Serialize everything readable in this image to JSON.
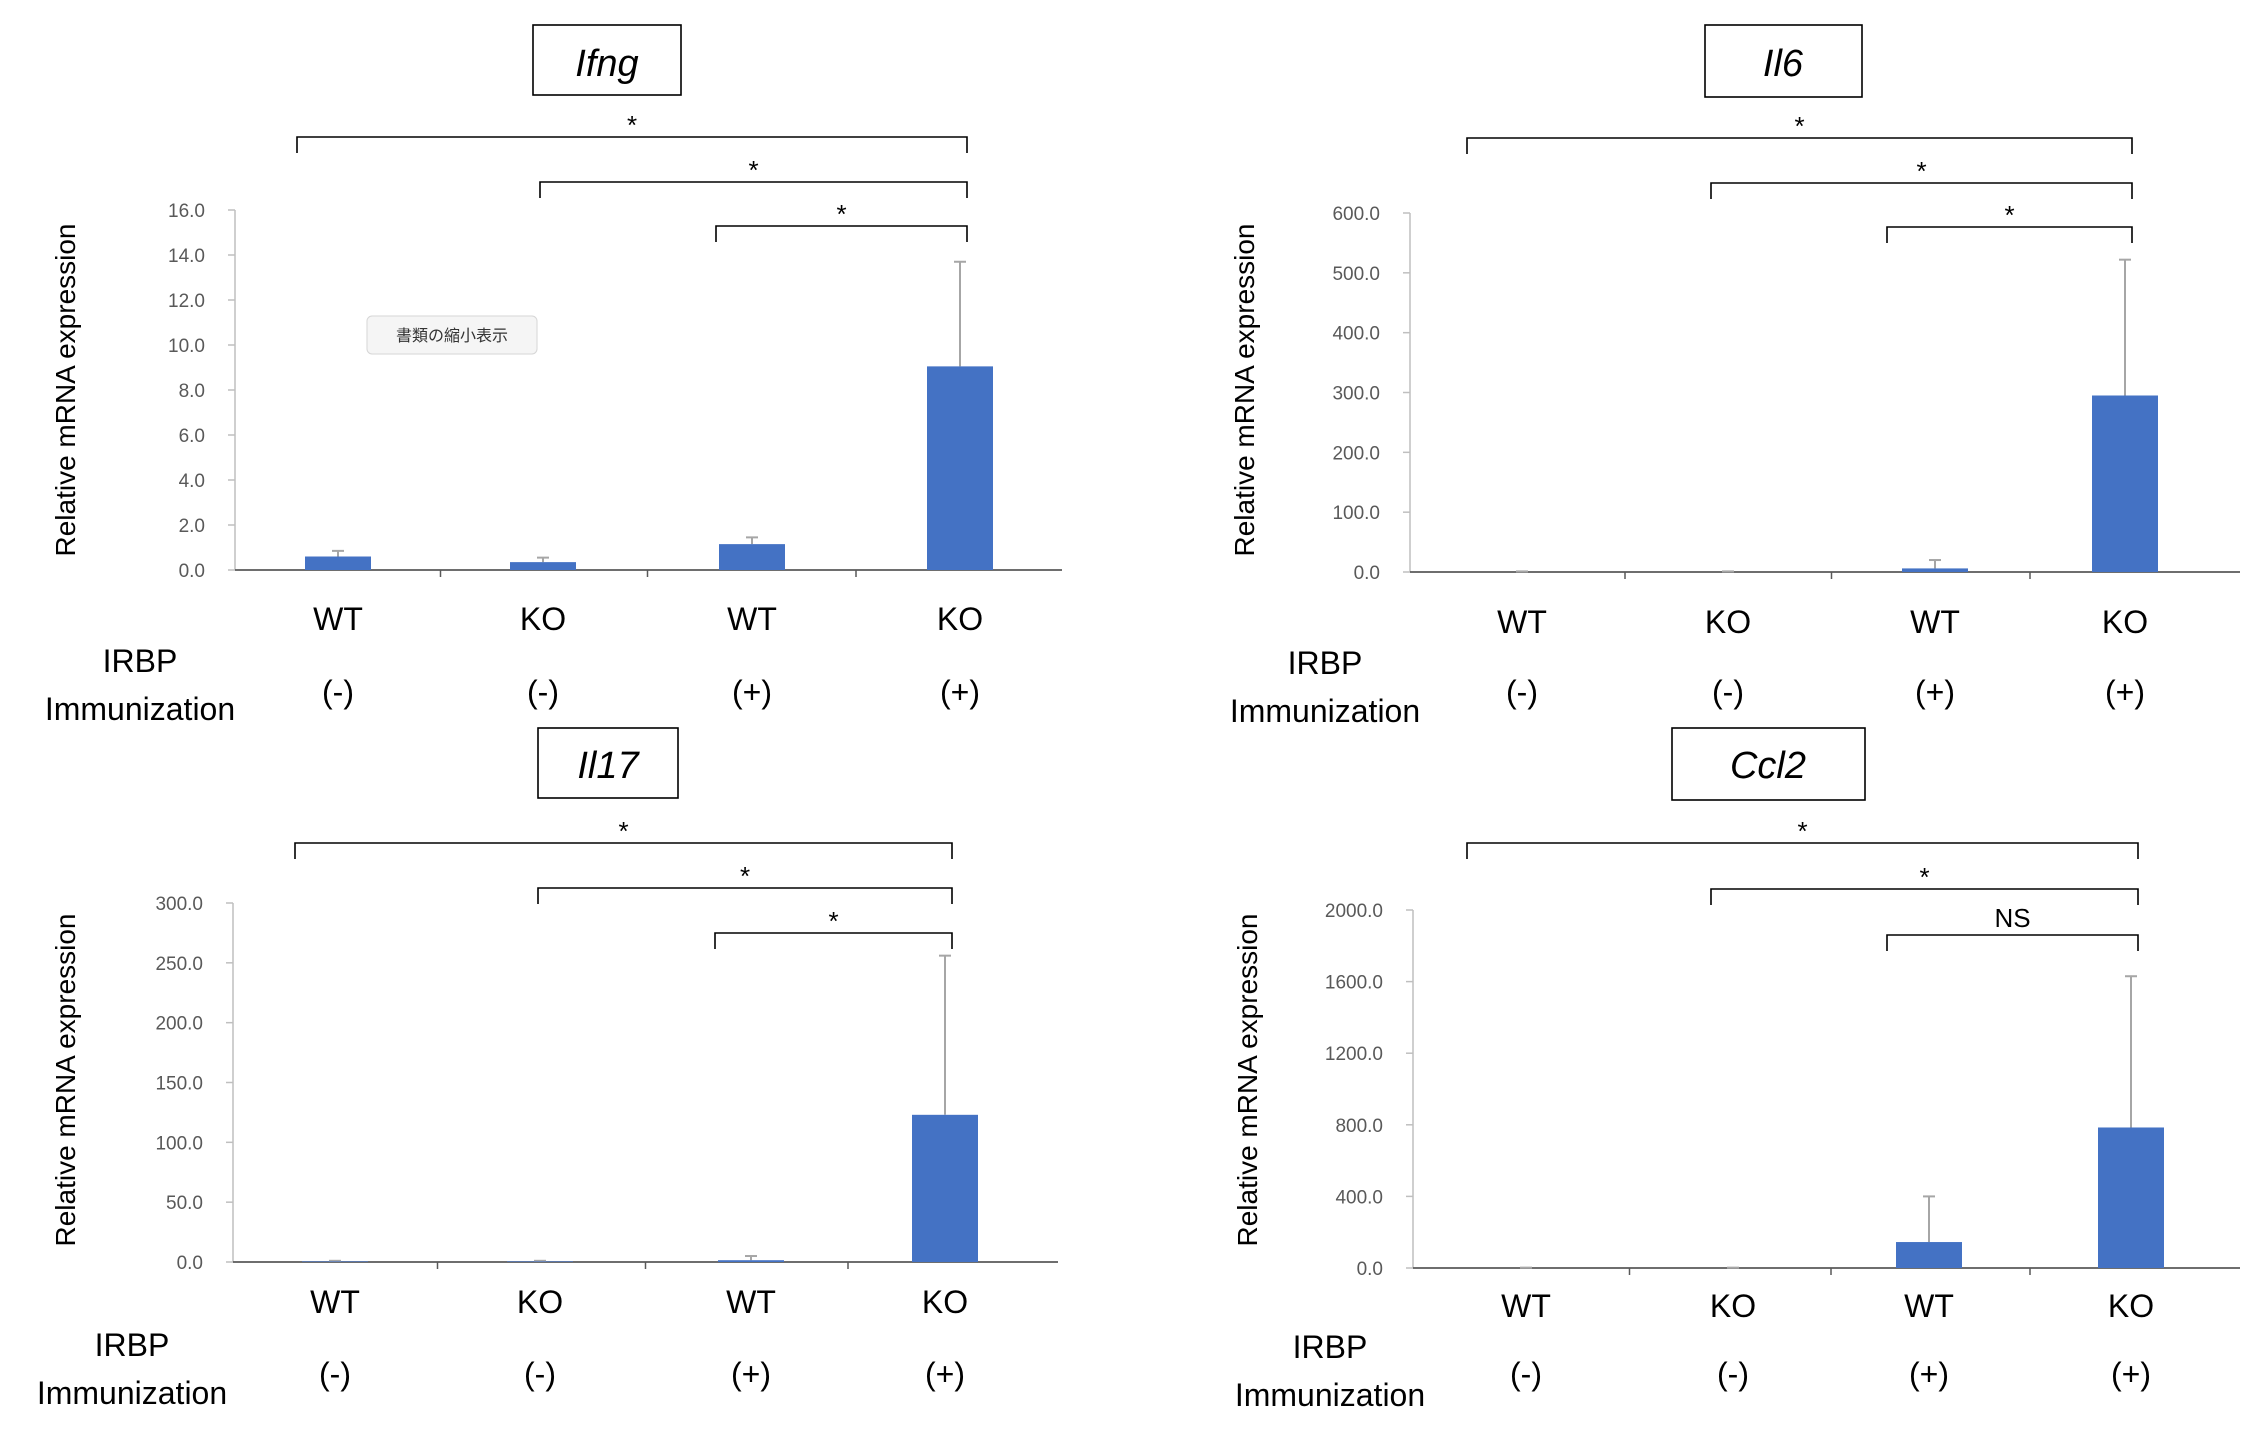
{
  "chart_data": [
    {
      "type": "bar",
      "title": "Ifng",
      "ylabel": "Relative mRNA expression",
      "ylim": [
        0,
        16
      ],
      "yticks": [
        "0.0",
        "2.0",
        "4.0",
        "6.0",
        "8.0",
        "10.0",
        "12.0",
        "14.0",
        "16.0"
      ],
      "categories": [
        "WT",
        "KO",
        "WT",
        "KO"
      ],
      "immunization": [
        "(-)",
        "(-)",
        "(+)",
        "(+)"
      ],
      "values": [
        0.6,
        0.35,
        1.15,
        9.05
      ],
      "errors": [
        0.25,
        0.2,
        0.3,
        4.65
      ],
      "comparisons": [
        {
          "from": 0,
          "to": 3,
          "label": "*"
        },
        {
          "from": 1,
          "to": 3,
          "label": "*"
        },
        {
          "from": 2,
          "to": 3,
          "label": "*"
        }
      ],
      "tooltip": "書類の縮小表示"
    },
    {
      "type": "bar",
      "title": "Il6",
      "ylabel": "Relative mRNA expression",
      "ylim": [
        0,
        600
      ],
      "yticks": [
        "0.0",
        "100.0",
        "200.0",
        "300.0",
        "400.0",
        "500.0",
        "600.0"
      ],
      "categories": [
        "WT",
        "KO",
        "WT",
        "KO"
      ],
      "immunization": [
        "(-)",
        "(-)",
        "(+)",
        "(+)"
      ],
      "values": [
        0.5,
        0.5,
        6,
        295
      ],
      "errors": [
        0.5,
        0.5,
        14,
        227
      ],
      "comparisons": [
        {
          "from": 0,
          "to": 3,
          "label": "*"
        },
        {
          "from": 1,
          "to": 3,
          "label": "*"
        },
        {
          "from": 2,
          "to": 3,
          "label": "*"
        }
      ]
    },
    {
      "type": "bar",
      "title": "Il17",
      "ylabel": "Relative mRNA expression",
      "ylim": [
        0,
        300
      ],
      "yticks": [
        "0.0",
        "50.0",
        "100.0",
        "150.0",
        "200.0",
        "250.0",
        "300.0"
      ],
      "categories": [
        "WT",
        "KO",
        "WT",
        "KO"
      ],
      "immunization": [
        "(-)",
        "(-)",
        "(+)",
        "(+)"
      ],
      "values": [
        0.5,
        0.5,
        1.5,
        123
      ],
      "errors": [
        0.5,
        0.5,
        3.5,
        133
      ],
      "comparisons": [
        {
          "from": 0,
          "to": 3,
          "label": "*"
        },
        {
          "from": 1,
          "to": 3,
          "label": "*"
        },
        {
          "from": 2,
          "to": 3,
          "label": "*"
        }
      ]
    },
    {
      "type": "bar",
      "title": "Ccl2",
      "ylabel": "Relative mRNA expression",
      "ylim": [
        0,
        2000
      ],
      "yticks": [
        "0.0",
        "400.0",
        "800.0",
        "1200.0",
        "1600.0",
        "2000.0"
      ],
      "categories": [
        "WT",
        "KO",
        "WT",
        "KO"
      ],
      "immunization": [
        "(-)",
        "(-)",
        "(+)",
        "(+)"
      ],
      "values": [
        1,
        1,
        145,
        785
      ],
      "errors": [
        1,
        1,
        255,
        845
      ],
      "comparisons": [
        {
          "from": 0,
          "to": 3,
          "label": "*"
        },
        {
          "from": 1,
          "to": 3,
          "label": "*"
        },
        {
          "from": 2,
          "to": 3,
          "label": "NS"
        }
      ]
    }
  ],
  "group_label_line1": "IRBP",
  "group_label_line2": "Immunization",
  "bar_color": "#4472C4",
  "error_color": "#A6A6A6"
}
